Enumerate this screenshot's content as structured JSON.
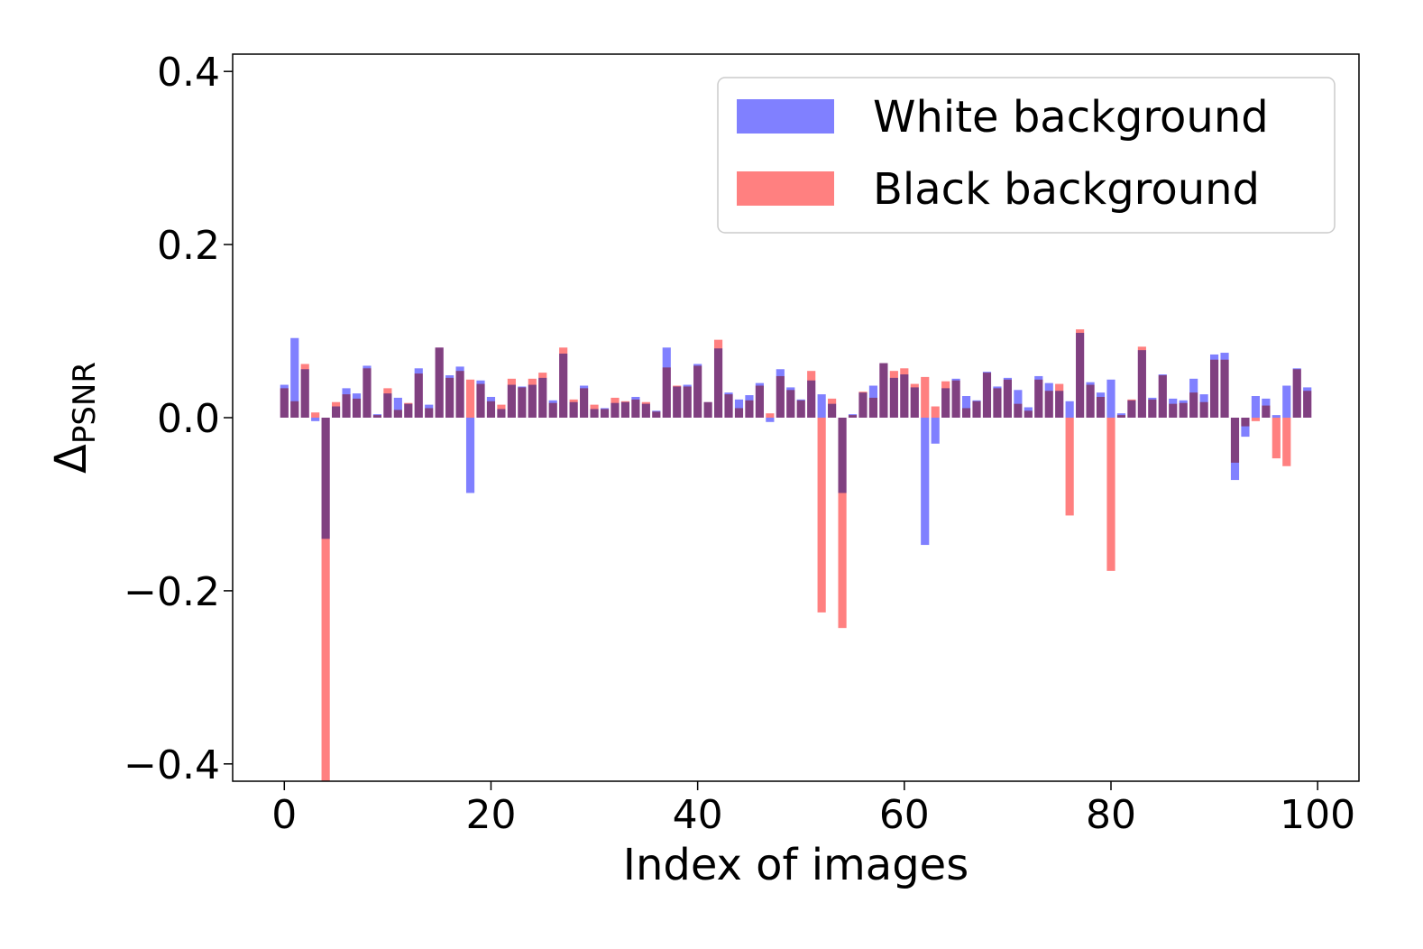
{
  "chart_data": {
    "type": "bar",
    "title": "",
    "xlabel": "Index of images",
    "ylabel": "Δ",
    "ylabel_subscript": "PSNR",
    "xlim": [
      -5,
      104
    ],
    "ylim": [
      -0.42,
      0.42
    ],
    "xticks": [
      0,
      20,
      40,
      60,
      80,
      100
    ],
    "xtick_labels": [
      "0",
      "20",
      "40",
      "60",
      "80",
      "100"
    ],
    "yticks": [
      0.4,
      0.2,
      0.0,
      -0.2,
      -0.4
    ],
    "ytick_labels": [
      "0.4",
      "0.2",
      "0.0",
      "−0.2",
      "−0.4"
    ],
    "legend_position": "top-right",
    "x": [
      0,
      1,
      2,
      3,
      4,
      5,
      6,
      7,
      8,
      9,
      10,
      11,
      12,
      13,
      14,
      15,
      16,
      17,
      18,
      19,
      20,
      21,
      22,
      23,
      24,
      25,
      26,
      27,
      28,
      29,
      30,
      31,
      32,
      33,
      34,
      35,
      36,
      37,
      38,
      39,
      40,
      41,
      42,
      43,
      44,
      45,
      46,
      47,
      48,
      49,
      50,
      51,
      52,
      53,
      54,
      55,
      56,
      57,
      58,
      59,
      60,
      61,
      62,
      63,
      64,
      65,
      66,
      67,
      68,
      69,
      70,
      71,
      72,
      73,
      74,
      75,
      76,
      77,
      78,
      79,
      80,
      81,
      82,
      83,
      84,
      85,
      86,
      87,
      88,
      89,
      90,
      91,
      92,
      93,
      94,
      95,
      96,
      97,
      98,
      99
    ],
    "series": [
      {
        "name": "White background",
        "color": "#8080ff",
        "values": [
          0.038,
          0.092,
          0.056,
          -0.004,
          -0.14,
          0.013,
          0.034,
          0.028,
          0.06,
          0.004,
          0.028,
          0.023,
          0.016,
          0.057,
          0.015,
          0.081,
          0.049,
          0.059,
          -0.087,
          0.043,
          0.024,
          0.01,
          0.038,
          0.036,
          0.038,
          0.046,
          0.02,
          0.074,
          0.018,
          0.037,
          0.01,
          0.011,
          0.017,
          0.018,
          0.024,
          0.016,
          0.008,
          0.081,
          0.036,
          0.038,
          0.062,
          0.018,
          0.08,
          0.029,
          0.021,
          0.026,
          0.04,
          -0.005,
          0.056,
          0.035,
          0.021,
          0.043,
          0.027,
          0.016,
          -0.087,
          0.004,
          0.029,
          0.037,
          0.063,
          0.046,
          0.05,
          0.035,
          -0.147,
          -0.03,
          0.034,
          0.045,
          0.025,
          0.02,
          0.053,
          0.036,
          0.046,
          0.032,
          0.012,
          0.048,
          0.04,
          0.031,
          0.019,
          0.098,
          0.041,
          0.029,
          0.044,
          0.005,
          0.02,
          0.078,
          0.023,
          0.05,
          0.022,
          0.02,
          0.045,
          0.027,
          0.073,
          0.075,
          -0.072,
          -0.022,
          0.025,
          0.022,
          0.003,
          0.037,
          0.057,
          0.035
        ]
      },
      {
        "name": "Black background",
        "color": "#ff8080",
        "values": [
          0.034,
          0.019,
          0.062,
          0.006,
          -0.42,
          0.018,
          0.027,
          0.022,
          0.057,
          0.003,
          0.034,
          0.009,
          0.017,
          0.051,
          0.011,
          0.081,
          0.046,
          0.054,
          0.044,
          0.039,
          0.019,
          0.015,
          0.045,
          0.035,
          0.045,
          0.052,
          0.017,
          0.081,
          0.021,
          0.034,
          0.015,
          0.01,
          0.023,
          0.019,
          0.021,
          0.018,
          0.007,
          0.058,
          0.037,
          0.036,
          0.06,
          0.018,
          0.09,
          0.027,
          0.011,
          0.02,
          0.037,
          0.005,
          0.048,
          0.032,
          0.02,
          0.054,
          -0.225,
          0.022,
          -0.243,
          0.003,
          0.03,
          0.023,
          0.063,
          0.054,
          0.057,
          0.039,
          0.047,
          0.013,
          0.042,
          0.043,
          0.011,
          0.019,
          0.052,
          0.034,
          0.044,
          0.016,
          0.008,
          0.044,
          0.031,
          0.039,
          -0.113,
          0.102,
          0.038,
          0.024,
          -0.177,
          0.003,
          0.021,
          0.082,
          0.021,
          0.049,
          0.016,
          0.017,
          0.029,
          0.018,
          0.067,
          0.067,
          -0.052,
          -0.01,
          -0.004,
          0.014,
          -0.047,
          -0.056,
          0.056,
          0.031
        ]
      }
    ]
  }
}
